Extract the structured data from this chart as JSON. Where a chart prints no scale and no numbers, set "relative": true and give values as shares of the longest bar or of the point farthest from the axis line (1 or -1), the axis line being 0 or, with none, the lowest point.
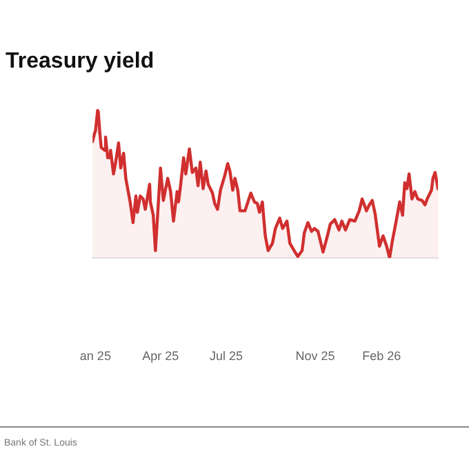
{
  "chart_data": {
    "type": "area",
    "title": "Treasury yield",
    "relative": true,
    "xlim": [
      "2024-12-28",
      "2026-04-20"
    ],
    "xticks": [
      {
        "value": "2025-01-01",
        "label": "an 25"
      },
      {
        "value": "2025-04-01",
        "label": "Apr 25"
      },
      {
        "value": "2025-07-01",
        "label": "Jul 25"
      },
      {
        "value": "2025-11-01",
        "label": "Nov 25"
      },
      {
        "value": "2026-02-01",
        "label": "Feb 26"
      }
    ],
    "x": [
      "2024-12-28",
      "2024-12-31",
      "2025-01-01",
      "2025-01-04",
      "2025-01-05",
      "2025-01-07",
      "2025-01-09",
      "2025-01-14",
      "2025-01-15",
      "2025-01-18",
      "2025-01-21",
      "2025-01-22",
      "2025-01-26",
      "2025-01-29",
      "2025-02-02",
      "2025-02-05",
      "2025-02-09",
      "2025-02-12",
      "2025-02-18",
      "2025-02-22",
      "2025-02-26",
      "2025-02-28",
      "2025-03-04",
      "2025-03-08",
      "2025-03-11",
      "2025-03-17",
      "2025-03-18",
      "2025-03-22",
      "2025-03-25",
      "2025-04-01",
      "2025-04-05",
      "2025-04-11",
      "2025-04-15",
      "2025-04-19",
      "2025-04-24",
      "2025-04-26",
      "2025-04-29",
      "2025-05-03",
      "2025-05-06",
      "2025-05-11",
      "2025-05-15",
      "2025-05-20",
      "2025-05-23",
      "2025-05-26",
      "2025-05-30",
      "2025-06-03",
      "2025-06-06",
      "2025-06-12",
      "2025-06-15",
      "2025-06-19",
      "2025-06-23",
      "2025-06-29",
      "2025-07-03",
      "2025-07-06",
      "2025-07-10",
      "2025-07-13",
      "2025-07-17",
      "2025-07-20",
      "2025-07-27",
      "2025-07-31",
      "2025-08-04",
      "2025-08-09",
      "2025-08-13",
      "2025-08-16",
      "2025-08-20",
      "2025-08-24",
      "2025-08-28",
      "2025-09-03",
      "2025-09-07",
      "2025-09-13",
      "2025-09-17",
      "2025-09-23",
      "2025-09-27",
      "2025-10-03",
      "2025-10-08",
      "2025-10-14",
      "2025-10-17",
      "2025-10-22",
      "2025-10-27",
      "2025-10-31",
      "2025-11-05",
      "2025-11-12",
      "2025-11-18",
      "2025-11-22",
      "2025-11-28",
      "2025-12-04",
      "2025-12-08",
      "2025-12-13",
      "2025-12-19",
      "2025-12-26",
      "2026-01-01",
      "2026-01-05",
      "2026-01-11",
      "2026-01-15",
      "2026-01-19",
      "2026-01-23",
      "2026-01-29",
      "2026-02-03",
      "2026-02-08",
      "2026-02-12",
      "2026-02-16",
      "2026-02-20",
      "2026-02-26",
      "2026-03-02",
      "2026-03-05",
      "2026-03-08",
      "2026-03-11",
      "2026-03-15",
      "2026-03-19",
      "2026-03-23",
      "2026-03-29",
      "2026-04-02",
      "2026-04-05",
      "2026-04-11",
      "2026-04-13",
      "2026-04-16",
      "2026-04-20"
    ],
    "series": [
      {
        "color": "#d12f2f",
        "values": [
          0.79,
          0.85,
          0.86,
          1.0,
          0.99,
          0.85,
          0.75,
          0.73,
          0.82,
          0.68,
          0.68,
          0.73,
          0.57,
          0.65,
          0.78,
          0.61,
          0.71,
          0.54,
          0.38,
          0.24,
          0.42,
          0.31,
          0.42,
          0.4,
          0.33,
          0.5,
          0.38,
          0.29,
          0.05,
          0.61,
          0.39,
          0.54,
          0.45,
          0.25,
          0.45,
          0.38,
          0.5,
          0.68,
          0.57,
          0.74,
          0.58,
          0.61,
          0.49,
          0.65,
          0.47,
          0.59,
          0.5,
          0.44,
          0.37,
          0.33,
          0.46,
          0.56,
          0.64,
          0.59,
          0.46,
          0.54,
          0.46,
          0.32,
          0.32,
          0.38,
          0.44,
          0.38,
          0.37,
          0.31,
          0.38,
          0.15,
          0.05,
          0.1,
          0.2,
          0.27,
          0.2,
          0.25,
          0.1,
          0.05,
          0.01,
          0.05,
          0.17,
          0.24,
          0.18,
          0.2,
          0.18,
          0.04,
          0.15,
          0.23,
          0.26,
          0.19,
          0.25,
          0.19,
          0.26,
          0.25,
          0.32,
          0.4,
          0.32,
          0.36,
          0.39,
          0.3,
          0.08,
          0.15,
          0.08,
          0,
          0.12,
          0.22,
          0.38,
          0.29,
          0.51,
          0.47,
          0.57,
          0.4,
          0.45,
          0.4,
          0.39,
          0.36,
          0.4,
          0.46,
          0.54,
          0.58,
          0.47
        ]
      }
    ],
    "annotations": [
      "Bank of St. Louis"
    ]
  }
}
